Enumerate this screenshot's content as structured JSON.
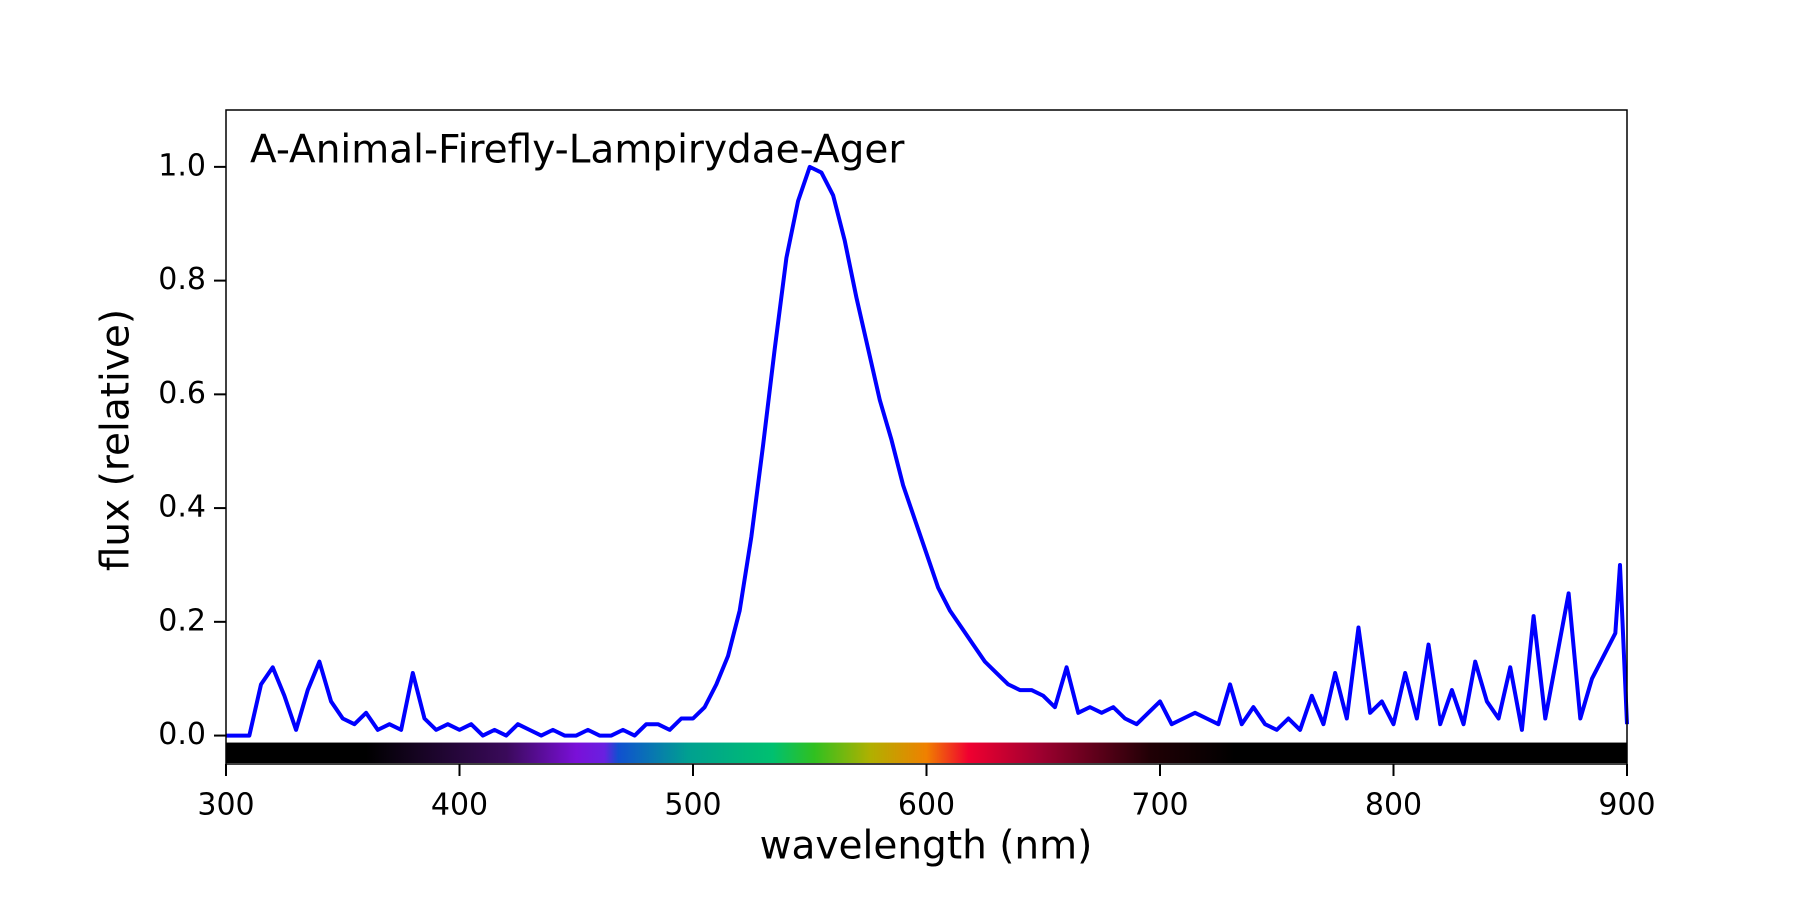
{
  "chart_data": {
    "type": "line",
    "title": "A-Animal-Firefly-Lampirydae-Ager",
    "x_label": "wavelength (nm)",
    "y_label": "flux (relative)",
    "xlim": [
      300,
      900
    ],
    "ylim": [
      -0.05,
      1.1
    ],
    "xticks": [
      300,
      400,
      500,
      600,
      700,
      800,
      900
    ],
    "yticks": [
      {
        "value": 0,
        "label": "0.0"
      },
      0.2,
      0.4,
      0.6,
      0.8,
      {
        "value": 1,
        "label": "1.0"
      }
    ],
    "series": [
      {
        "name": "A-Animal-Firefly-Lampirydae-Ager",
        "color": "#0000ff",
        "x": [
          300,
          305,
          310,
          315,
          320,
          325,
          330,
          335,
          340,
          345,
          350,
          355,
          360,
          365,
          370,
          375,
          380,
          385,
          390,
          395,
          400,
          405,
          410,
          415,
          420,
          425,
          430,
          435,
          440,
          445,
          450,
          455,
          460,
          465,
          470,
          475,
          480,
          485,
          490,
          495,
          500,
          505,
          510,
          515,
          520,
          525,
          530,
          535,
          540,
          545,
          550,
          555,
          560,
          565,
          570,
          575,
          580,
          585,
          590,
          595,
          600,
          605,
          610,
          615,
          620,
          625,
          630,
          635,
          640,
          645,
          650,
          655,
          660,
          665,
          670,
          675,
          680,
          685,
          690,
          695,
          700,
          705,
          710,
          715,
          720,
          725,
          730,
          735,
          740,
          745,
          750,
          755,
          760,
          765,
          770,
          775,
          780,
          785,
          790,
          795,
          800,
          805,
          810,
          815,
          820,
          825,
          830,
          835,
          840,
          845,
          850,
          855,
          860,
          865,
          870,
          875,
          880,
          885,
          890,
          895,
          897,
          900
        ],
        "values": [
          0,
          0,
          0,
          0.09,
          0.12,
          0.07,
          0.01,
          0.08,
          0.13,
          0.06,
          0.03,
          0.02,
          0.04,
          0.01,
          0.02,
          0.01,
          0.11,
          0.03,
          0.01,
          0.02,
          0.01,
          0.02,
          0,
          0.01,
          0,
          0.02,
          0.01,
          0,
          0.01,
          0,
          0,
          0.01,
          0,
          0,
          0.01,
          0,
          0.02,
          0.02,
          0.01,
          0.03,
          0.03,
          0.05,
          0.09,
          0.14,
          0.22,
          0.35,
          0.51,
          0.68,
          0.84,
          0.94,
          1.0,
          0.99,
          0.95,
          0.87,
          0.77,
          0.68,
          0.59,
          0.52,
          0.44,
          0.38,
          0.32,
          0.26,
          0.22,
          0.19,
          0.16,
          0.13,
          0.11,
          0.09,
          0.08,
          0.08,
          0.07,
          0.05,
          0.12,
          0.04,
          0.05,
          0.04,
          0.05,
          0.03,
          0.02,
          0.04,
          0.06,
          0.02,
          0.03,
          0.04,
          0.03,
          0.02,
          0.09,
          0.02,
          0.05,
          0.02,
          0.01,
          0.03,
          0.01,
          0.07,
          0.02,
          0.11,
          0.03,
          0.19,
          0.04,
          0.06,
          0.02,
          0.11,
          0.03,
          0.16,
          0.02,
          0.08,
          0.02,
          0.13,
          0.06,
          0.03,
          0.12,
          0.01,
          0.21,
          0.03,
          0.14,
          0.25,
          0.03,
          0.1,
          0.14,
          0.18,
          0.3,
          0.02
        ]
      }
    ]
  }
}
